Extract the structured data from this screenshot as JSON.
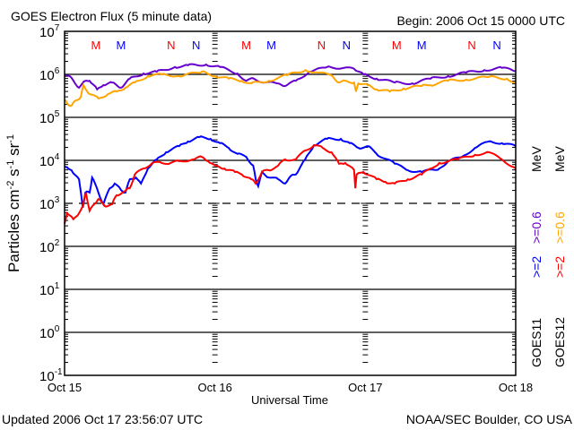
{
  "chart_data": {
    "type": "line",
    "title": "GOES Electron Flux (5 minute data)",
    "begin": "Begin: 2006 Oct 15 0000 UTC",
    "xlabel": "Universal Time",
    "ylabel_parts": [
      "Particles cm",
      "-2",
      "s",
      "-1",
      "sr",
      "-1"
    ],
    "x_unit": "hours since 2006 Oct 15 0000 UTC",
    "xlim": [
      0,
      72
    ],
    "x_ticks": [
      {
        "hour": 0,
        "label": "Oct 15"
      },
      {
        "hour": 24,
        "label": "Oct 16"
      },
      {
        "hour": 48,
        "label": "Oct 17"
      },
      {
        "hour": 72,
        "label": "Oct 18"
      }
    ],
    "y_scale": "log",
    "ylim_log10": [
      -1,
      7
    ],
    "y_ticks": [
      {
        "base": "10",
        "exp": "7"
      },
      {
        "base": "10",
        "exp": "6"
      },
      {
        "base": "10",
        "exp": "5"
      },
      {
        "base": "10",
        "exp": "4"
      },
      {
        "base": "10",
        "exp": "3"
      },
      {
        "base": "10",
        "exp": "2"
      },
      {
        "base": "10",
        "exp": "1"
      },
      {
        "base": "10",
        "exp": "0"
      },
      {
        "base": "10",
        "exp": "-1"
      }
    ],
    "reference_lines": [
      {
        "log10": 6,
        "style": "solid"
      },
      {
        "log10": 5,
        "style": "solid"
      },
      {
        "log10": 4,
        "style": "solid"
      },
      {
        "log10": 3,
        "style": "dashed"
      },
      {
        "log10": 2,
        "style": "solid"
      },
      {
        "log10": 1,
        "style": "solid"
      },
      {
        "log10": 0,
        "style": "solid"
      }
    ],
    "markers": [
      {
        "label": "M",
        "hour": 5,
        "color": "#ff0000"
      },
      {
        "label": "M",
        "hour": 9,
        "color": "#0000ff"
      },
      {
        "label": "N",
        "hour": 17,
        "color": "#ff0000"
      },
      {
        "label": "N",
        "hour": 21,
        "color": "#0000ff"
      },
      {
        "label": "M",
        "hour": 29,
        "color": "#ff0000"
      },
      {
        "label": "M",
        "hour": 33,
        "color": "#0000ff"
      },
      {
        "label": "N",
        "hour": 41,
        "color": "#ff0000"
      },
      {
        "label": "N",
        "hour": 45,
        "color": "#0000ff"
      },
      {
        "label": "M",
        "hour": 53,
        "color": "#ff0000"
      },
      {
        "label": "M",
        "hour": 57,
        "color": "#0000ff"
      },
      {
        "label": "N",
        "hour": 65,
        "color": "#ff0000"
      },
      {
        "label": "N",
        "hour": 69,
        "color": "#0000ff"
      }
    ],
    "legend": {
      "placement": "right (rotated)",
      "columns": [
        {
          "satellite": "GOES11",
          "e2": ">=2",
          "e06": ">=0.6",
          "unit": "MeV",
          "color_e2": "#0000ff",
          "color_e06": "#6600cc"
        },
        {
          "satellite": "GOES12",
          "e2": ">=2",
          "e06": ">=0.6",
          "unit": "MeV",
          "color_e2": "#ff0000",
          "color_e06": "#ffa500"
        }
      ]
    },
    "series": [
      {
        "name": "GOES11 >=0.6 MeV",
        "color": "#6600cc",
        "points_hour_log10": [
          [
            0,
            5.98
          ],
          [
            1.1,
            5.92
          ],
          [
            2.3,
            5.69
          ],
          [
            3.3,
            5.85
          ],
          [
            4.0,
            5.85
          ],
          [
            5.2,
            5.65
          ],
          [
            6.2,
            5.75
          ],
          [
            7.6,
            5.81
          ],
          [
            9.0,
            5.69
          ],
          [
            10.4,
            5.9
          ],
          [
            12.6,
            6.02
          ],
          [
            14.7,
            6.06
          ],
          [
            17.6,
            6.17
          ],
          [
            19.7,
            6.21
          ],
          [
            22.6,
            6.23
          ],
          [
            24.8,
            6.17
          ],
          [
            27.6,
            6.02
          ],
          [
            29.0,
            5.85
          ],
          [
            30.2,
            5.9
          ],
          [
            31.9,
            5.81
          ],
          [
            34.1,
            5.79
          ],
          [
            35.2,
            5.73
          ],
          [
            36.9,
            5.85
          ],
          [
            39.1,
            6.06
          ],
          [
            41.9,
            6.17
          ],
          [
            46.2,
            6.13
          ],
          [
            47.7,
            6.0
          ],
          [
            49.8,
            5.9
          ],
          [
            52.7,
            5.81
          ],
          [
            55.5,
            5.79
          ],
          [
            58.4,
            5.9
          ],
          [
            61.2,
            5.96
          ],
          [
            64.1,
            6.04
          ],
          [
            67.0,
            6.1
          ],
          [
            69.8,
            6.15
          ],
          [
            72.0,
            6.08
          ]
        ]
      },
      {
        "name": "GOES12 >=0.6 MeV",
        "color": "#ffa500",
        "points_hour_log10": [
          [
            0,
            5.4
          ],
          [
            0.4,
            5.33
          ],
          [
            1.1,
            5.27
          ],
          [
            1.9,
            5.4
          ],
          [
            2.6,
            5.48
          ],
          [
            3.0,
            5.75
          ],
          [
            4.0,
            5.54
          ],
          [
            5.4,
            5.44
          ],
          [
            6.9,
            5.54
          ],
          [
            8.3,
            5.6
          ],
          [
            9.7,
            5.69
          ],
          [
            11.2,
            5.81
          ],
          [
            13.3,
            5.96
          ],
          [
            15.5,
            6.0
          ],
          [
            18.3,
            5.96
          ],
          [
            21.9,
            6.06
          ],
          [
            24.0,
            5.96
          ],
          [
            26.2,
            5.9
          ],
          [
            28.3,
            5.85
          ],
          [
            29.8,
            5.79
          ],
          [
            32.6,
            5.85
          ],
          [
            35.5,
            5.98
          ],
          [
            38.4,
            6.1
          ],
          [
            40.5,
            6.04
          ],
          [
            42.6,
            5.98
          ],
          [
            43.8,
            5.81
          ],
          [
            44.8,
            5.85
          ],
          [
            46.2,
            5.81
          ],
          [
            46.5,
            5.6
          ],
          [
            46.9,
            5.79
          ],
          [
            48.4,
            5.75
          ],
          [
            49.8,
            5.65
          ],
          [
            51.9,
            5.6
          ],
          [
            54.1,
            5.67
          ],
          [
            57.0,
            5.73
          ],
          [
            58.4,
            5.75
          ],
          [
            61.2,
            5.85
          ],
          [
            64.1,
            5.88
          ],
          [
            67.7,
            5.94
          ],
          [
            70.6,
            5.9
          ],
          [
            72.0,
            5.81
          ]
        ]
      },
      {
        "name": "GOES11 >=2 MeV",
        "color": "#0000ff",
        "points_hour_log10": [
          [
            0,
            3.85
          ],
          [
            1.1,
            3.77
          ],
          [
            2.3,
            3.56
          ],
          [
            2.9,
            2.9
          ],
          [
            3.3,
            3.25
          ],
          [
            4.0,
            3.25
          ],
          [
            4.4,
            3.6
          ],
          [
            5.4,
            3.25
          ],
          [
            6.2,
            2.98
          ],
          [
            7.2,
            3.35
          ],
          [
            8.0,
            3.46
          ],
          [
            9.0,
            3.31
          ],
          [
            9.7,
            3.25
          ],
          [
            10.4,
            3.56
          ],
          [
            11.4,
            3.6
          ],
          [
            12.2,
            3.46
          ],
          [
            13.3,
            3.81
          ],
          [
            14.7,
            4.02
          ],
          [
            16.2,
            4.19
          ],
          [
            18.3,
            4.33
          ],
          [
            19.7,
            4.44
          ],
          [
            21.5,
            4.54
          ],
          [
            23.3,
            4.5
          ],
          [
            24.8,
            4.4
          ],
          [
            26.2,
            4.29
          ],
          [
            27.6,
            4.15
          ],
          [
            29.0,
            4.08
          ],
          [
            30.1,
            3.88
          ],
          [
            30.5,
            3.56
          ],
          [
            30.9,
            3.4
          ],
          [
            31.5,
            3.73
          ],
          [
            32.6,
            3.6
          ],
          [
            34.1,
            3.56
          ],
          [
            35.2,
            3.46
          ],
          [
            36.2,
            3.65
          ],
          [
            36.9,
            3.67
          ],
          [
            38.4,
            4.02
          ],
          [
            39.8,
            4.35
          ],
          [
            41.9,
            4.5
          ],
          [
            44.1,
            4.5
          ],
          [
            45.5,
            4.4
          ],
          [
            46.9,
            4.29
          ],
          [
            48.4,
            4.33
          ],
          [
            49.8,
            4.15
          ],
          [
            52.7,
            3.92
          ],
          [
            54.8,
            3.77
          ],
          [
            57.0,
            3.73
          ],
          [
            59.8,
            3.81
          ],
          [
            61.2,
            3.98
          ],
          [
            63.4,
            4.08
          ],
          [
            65.5,
            4.29
          ],
          [
            67.7,
            4.44
          ],
          [
            69.8,
            4.4
          ],
          [
            72.0,
            4.33
          ]
        ]
      },
      {
        "name": "GOES12 >=2 MeV",
        "color": "#ff0000",
        "points_hour_log10": [
          [
            0,
            2.52
          ],
          [
            0.4,
            2.77
          ],
          [
            1.4,
            2.63
          ],
          [
            2.3,
            2.77
          ],
          [
            2.9,
            2.94
          ],
          [
            3.4,
            3.25
          ],
          [
            4.0,
            2.83
          ],
          [
            4.7,
            2.98
          ],
          [
            5.4,
            3.1
          ],
          [
            6.4,
            2.94
          ],
          [
            7.6,
            2.98
          ],
          [
            8.3,
            3.19
          ],
          [
            9.7,
            3.29
          ],
          [
            10.4,
            3.35
          ],
          [
            11.2,
            3.67
          ],
          [
            12.6,
            3.81
          ],
          [
            14.0,
            3.94
          ],
          [
            15.5,
            3.94
          ],
          [
            16.9,
            3.94
          ],
          [
            18.3,
            3.98
          ],
          [
            20.5,
            4.02
          ],
          [
            21.9,
            4.08
          ],
          [
            22.9,
            3.98
          ],
          [
            24.0,
            3.88
          ],
          [
            25.5,
            3.81
          ],
          [
            27.2,
            3.73
          ],
          [
            28.3,
            3.67
          ],
          [
            29.8,
            3.56
          ],
          [
            30.5,
            3.46
          ],
          [
            31.5,
            3.73
          ],
          [
            32.6,
            3.77
          ],
          [
            34.1,
            3.88
          ],
          [
            35.2,
            4.02
          ],
          [
            36.9,
            4.02
          ],
          [
            38.4,
            4.23
          ],
          [
            39.8,
            4.35
          ],
          [
            41.2,
            4.29
          ],
          [
            42.6,
            4.19
          ],
          [
            43.8,
            3.92
          ],
          [
            44.8,
            3.94
          ],
          [
            46.2,
            3.77
          ],
          [
            46.4,
            3.35
          ],
          [
            46.6,
            3.67
          ],
          [
            47.7,
            3.73
          ],
          [
            49.8,
            3.56
          ],
          [
            51.2,
            3.5
          ],
          [
            52.7,
            3.46
          ],
          [
            54.8,
            3.56
          ],
          [
            57.0,
            3.67
          ],
          [
            59.8,
            3.94
          ],
          [
            62.7,
            4.02
          ],
          [
            65.5,
            4.13
          ],
          [
            67.7,
            4.19
          ],
          [
            69.8,
            4.02
          ],
          [
            72.0,
            3.81
          ]
        ]
      }
    ]
  },
  "footer": {
    "updated": "Updated 2006 Oct 17 23:56:07 UTC",
    "source": "NOAA/SEC Boulder, CO USA"
  }
}
